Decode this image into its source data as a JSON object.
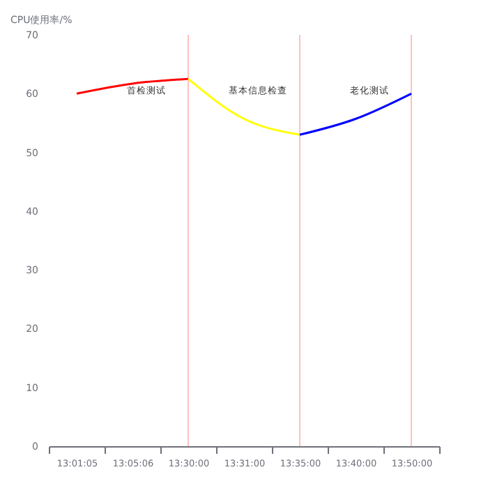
{
  "chart_data": {
    "type": "line",
    "ylabel": "CPU使用率/%",
    "categories": [
      "13:01:05",
      "13:05:06",
      "13:30:00",
      "13:31:00",
      "13:35:00",
      "13:40:00",
      "13:50:00"
    ],
    "series": [
      {
        "color": "#ff0000",
        "values": [
          60,
          61.7,
          62.5,
          null,
          null,
          null,
          null
        ]
      },
      {
        "color": "#ffff00",
        "values": [
          null,
          null,
          62.5,
          55.7,
          53,
          null,
          null
        ]
      },
      {
        "color": "#0000ff",
        "values": [
          null,
          null,
          null,
          null,
          53,
          55.7,
          60
        ]
      }
    ],
    "ylim": [
      0,
      70
    ],
    "yticks": [
      0,
      10,
      20,
      30,
      40,
      50,
      60,
      70
    ],
    "ref_lines": [
      {
        "axis": "x",
        "value": "13:30:00",
        "color": "#ffc0c0",
        "label": "首检测试"
      },
      {
        "axis": "x",
        "value": "13:35:00",
        "color": "#ffc0c0",
        "label": "基本信息检查"
      },
      {
        "axis": "x",
        "value": "13:50:00",
        "color": "#ffc0c0",
        "label": "老化测试"
      }
    ]
  }
}
